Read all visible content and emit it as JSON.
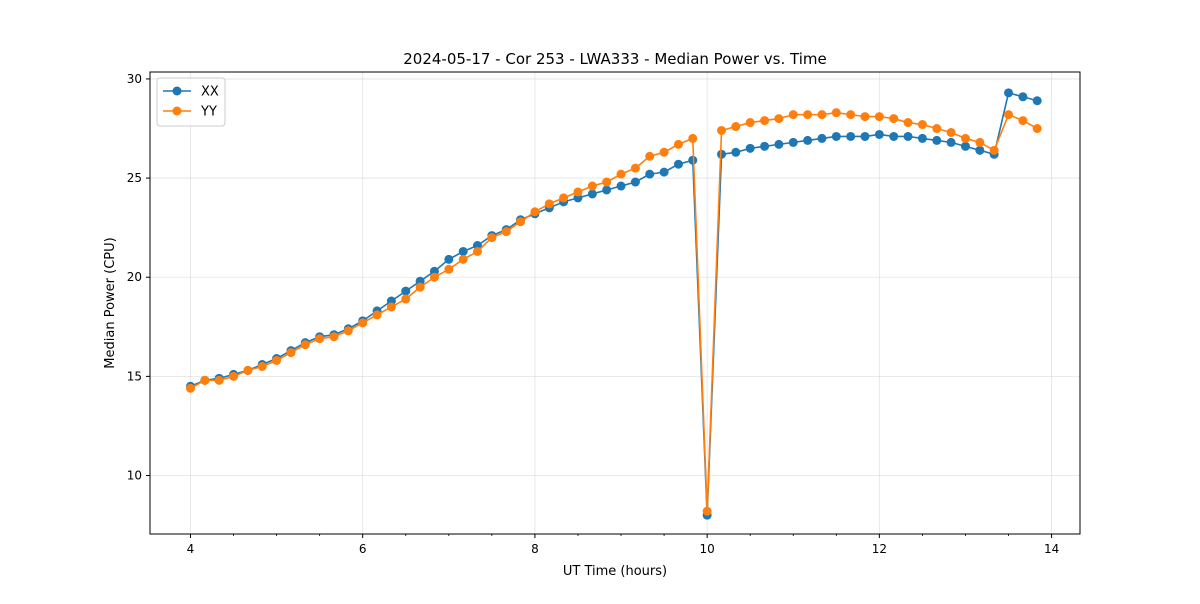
{
  "chart_data": {
    "type": "line",
    "title": "2024-05-17 - Cor 253 - LWA333 - Median Power vs. Time",
    "xlabel": "UT Time (hours)",
    "ylabel": "Median Power (CPU)",
    "xlim": [
      3.53,
      14.33
    ],
    "ylim": [
      7.05,
      30.35
    ],
    "xticks": [
      4,
      6,
      8,
      10,
      12,
      14
    ],
    "yticks": [
      10,
      15,
      20,
      25,
      30
    ],
    "grid": true,
    "legend_position": "upper-left",
    "x": [
      4.0,
      4.167,
      4.333,
      4.5,
      4.667,
      4.833,
      5.0,
      5.167,
      5.333,
      5.5,
      5.667,
      5.833,
      6.0,
      6.167,
      6.333,
      6.5,
      6.667,
      6.833,
      7.0,
      7.167,
      7.333,
      7.5,
      7.667,
      7.833,
      8.0,
      8.167,
      8.333,
      8.5,
      8.667,
      8.833,
      9.0,
      9.167,
      9.333,
      9.5,
      9.667,
      9.833,
      10.0,
      10.167,
      10.333,
      10.5,
      10.667,
      10.833,
      11.0,
      11.167,
      11.333,
      11.5,
      11.667,
      11.833,
      12.0,
      12.167,
      12.333,
      12.5,
      12.667,
      12.833,
      13.0,
      13.167,
      13.333,
      13.5,
      13.667,
      13.833
    ],
    "series": [
      {
        "name": "XX",
        "color": "#1f77b4",
        "values": [
          14.5,
          14.8,
          14.9,
          15.1,
          15.3,
          15.6,
          15.9,
          16.3,
          16.7,
          17.0,
          17.1,
          17.4,
          17.8,
          18.3,
          18.8,
          19.3,
          19.8,
          20.3,
          20.9,
          21.3,
          21.6,
          22.1,
          22.4,
          22.9,
          23.2,
          23.5,
          23.8,
          24.0,
          24.2,
          24.4,
          24.6,
          24.8,
          25.2,
          25.3,
          25.7,
          25.9,
          8.0,
          26.2,
          26.3,
          26.5,
          26.6,
          26.7,
          26.8,
          26.9,
          27.0,
          27.1,
          27.1,
          27.1,
          27.2,
          27.1,
          27.1,
          27.0,
          26.9,
          26.8,
          26.6,
          26.4,
          26.2,
          29.3,
          29.1,
          28.9
        ]
      },
      {
        "name": "YY",
        "color": "#ff7f0e",
        "values": [
          14.4,
          14.8,
          14.8,
          15.0,
          15.3,
          15.5,
          15.8,
          16.2,
          16.6,
          16.9,
          17.0,
          17.3,
          17.7,
          18.1,
          18.5,
          18.9,
          19.5,
          20.0,
          20.4,
          20.9,
          21.3,
          22.0,
          22.3,
          22.8,
          23.3,
          23.7,
          24.0,
          24.3,
          24.6,
          24.8,
          25.2,
          25.5,
          26.1,
          26.3,
          26.7,
          27.0,
          8.2,
          27.4,
          27.6,
          27.8,
          27.9,
          28.0,
          28.2,
          28.2,
          28.2,
          28.3,
          28.2,
          28.1,
          28.1,
          28.0,
          27.8,
          27.7,
          27.5,
          27.3,
          27.0,
          26.8,
          26.4,
          28.2,
          27.9,
          27.5
        ]
      }
    ]
  }
}
